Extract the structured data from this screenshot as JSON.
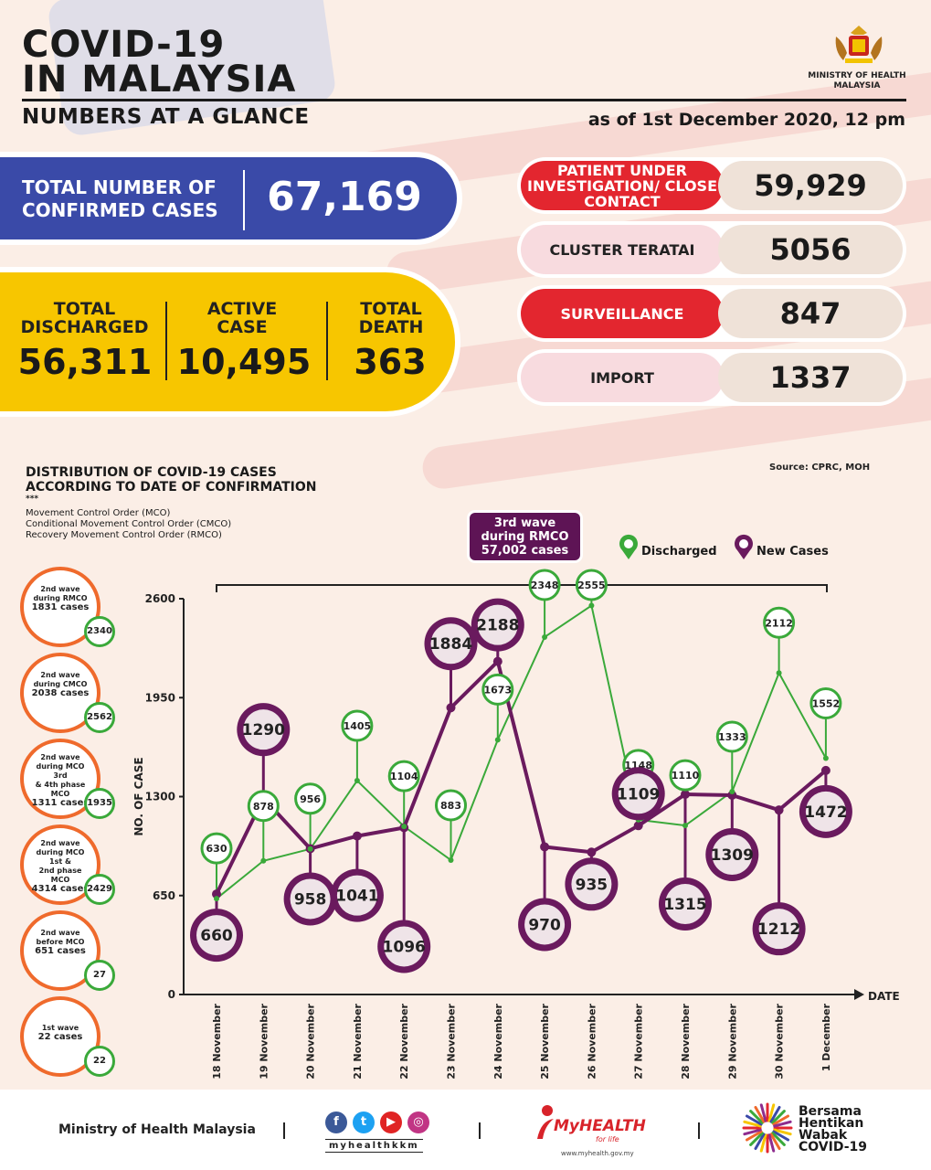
{
  "header": {
    "title_line1": "COVID-19",
    "title_line2": "IN MALAYSIA",
    "subtitle": "NUMBERS AT A GLANCE",
    "as_of": "as of 1st December 2020, 12 pm",
    "ministry_line1": "MINISTRY OF HEALTH",
    "ministry_line2": "MALAYSIA"
  },
  "totals": {
    "confirmed_label": "TOTAL NUMBER OF CONFIRMED CASES",
    "confirmed_value": "67,169",
    "discharged_label": "TOTAL DISCHARGED",
    "discharged_value": "56,311",
    "active_label": "ACTIVE CASE",
    "active_value": "10,495",
    "death_label": "TOTAL DEATH",
    "death_value": "363"
  },
  "categories": [
    {
      "label": "PATIENT UNDER INVESTIGATION/ CLOSE CONTACT",
      "value": "59,929",
      "style": "red"
    },
    {
      "label": "CLUSTER TERATAI",
      "value": "5056",
      "style": "pink"
    },
    {
      "label": "SURVEILLANCE",
      "value": "847",
      "style": "red"
    },
    {
      "label": "IMPORT",
      "value": "1337",
      "style": "pink"
    }
  ],
  "distribution": {
    "title_line1": "DISTRIBUTION OF COVID-19 CASES",
    "title_line2": "ACCORDING TO DATE OF CONFIRMATION",
    "stars": "***",
    "note1": "Movement Control Order (MCO)",
    "note2": "Conditional Movement Control Order (CMCO)",
    "note3": "Recovery Movement Control Order (RMCO)",
    "source": "Source: CPRC, MOH",
    "badge_line1": "3rd wave",
    "badge_line2": "during RMCO",
    "badge_line3": "57,002 cases",
    "legend_discharged": "Discharged",
    "legend_new": "New Cases"
  },
  "waves": [
    {
      "line1": "2nd wave",
      "line2": "during RMCO",
      "line3": "1831 cases",
      "line4": "",
      "count": "2340"
    },
    {
      "line1": "2nd wave",
      "line2": "during CMCO",
      "line3": "2038 cases",
      "line4": "",
      "count": "2562"
    },
    {
      "line1": "2nd wave",
      "line2": "during MCO 3rd",
      "line3": "& 4th phase MCO",
      "line4": "1311 cases",
      "count": "1935"
    },
    {
      "line1": "2nd wave",
      "line2": "during MCO 1st &",
      "line3": "2nd phase MCO",
      "line4": "4314 cases",
      "count": "2429"
    },
    {
      "line1": "2nd wave",
      "line2": "before MCO",
      "line3": "651 cases",
      "line4": "",
      "count": "27"
    },
    {
      "line1": "1st wave",
      "line2": "22 cases",
      "line3": "",
      "line4": "",
      "count": "22"
    }
  ],
  "chart_data": {
    "type": "line",
    "xlabel": "DATE",
    "ylabel": "NO. OF CASE",
    "ylim": [
      0,
      2600
    ],
    "yticks": [
      0,
      650,
      1300,
      1950,
      2600
    ],
    "categories": [
      "18 November",
      "19 November",
      "20 November",
      "21 November",
      "22 November",
      "23 November",
      "24 November",
      "25 November",
      "26 November",
      "27 November",
      "28 November",
      "29 November",
      "30 November",
      "1 December"
    ],
    "series": [
      {
        "name": "Discharged",
        "color": "#3aa93a",
        "values": [
          630,
          878,
          956,
          1405,
          1104,
          883,
          1673,
          2348,
          2555,
          1148,
          1110,
          1333,
          2112,
          1552
        ]
      },
      {
        "name": "New Cases",
        "color": "#6a1a5e",
        "values": [
          660,
          1290,
          958,
          1041,
          1096,
          1884,
          2188,
          970,
          935,
          1109,
          1315,
          1309,
          1212,
          1472
        ]
      }
    ]
  },
  "footer": {
    "ministry": "Ministry of Health Malaysia",
    "social_handle": "myhealthkkm",
    "myhealth": "MyHEALTH",
    "myhealth_tag": "for life",
    "myhealth_url": "www.myhealth.gov.my",
    "campaign_line1": "Bersama",
    "campaign_line2": "Hentikan",
    "campaign_line3": "Wabak",
    "campaign_line4": "COVID-19"
  }
}
